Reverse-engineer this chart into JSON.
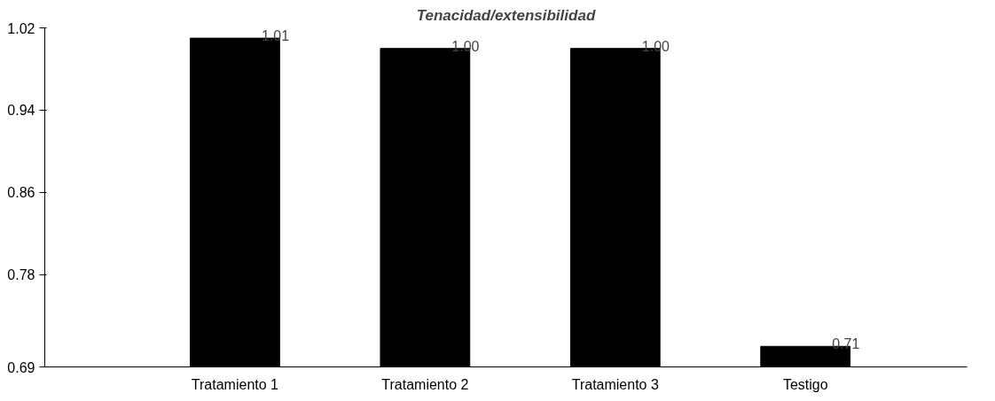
{
  "chart_data": {
    "type": "bar",
    "title": "Tenacidad/extensibilidad",
    "categories": [
      "Tratamiento 1",
      "Tratamiento 2",
      "Tratamiento 3",
      "Testigo"
    ],
    "values": [
      1.01,
      1.0,
      1.0,
      0.71
    ],
    "color": "#000000",
    "ylim": [
      0.69,
      1.02
    ],
    "yticks": [
      0.69,
      0.78,
      0.86,
      0.94,
      1.02
    ],
    "value_labels": [
      "1.01",
      "1.00",
      "1.00",
      "0.71"
    ],
    "grid": false
  }
}
